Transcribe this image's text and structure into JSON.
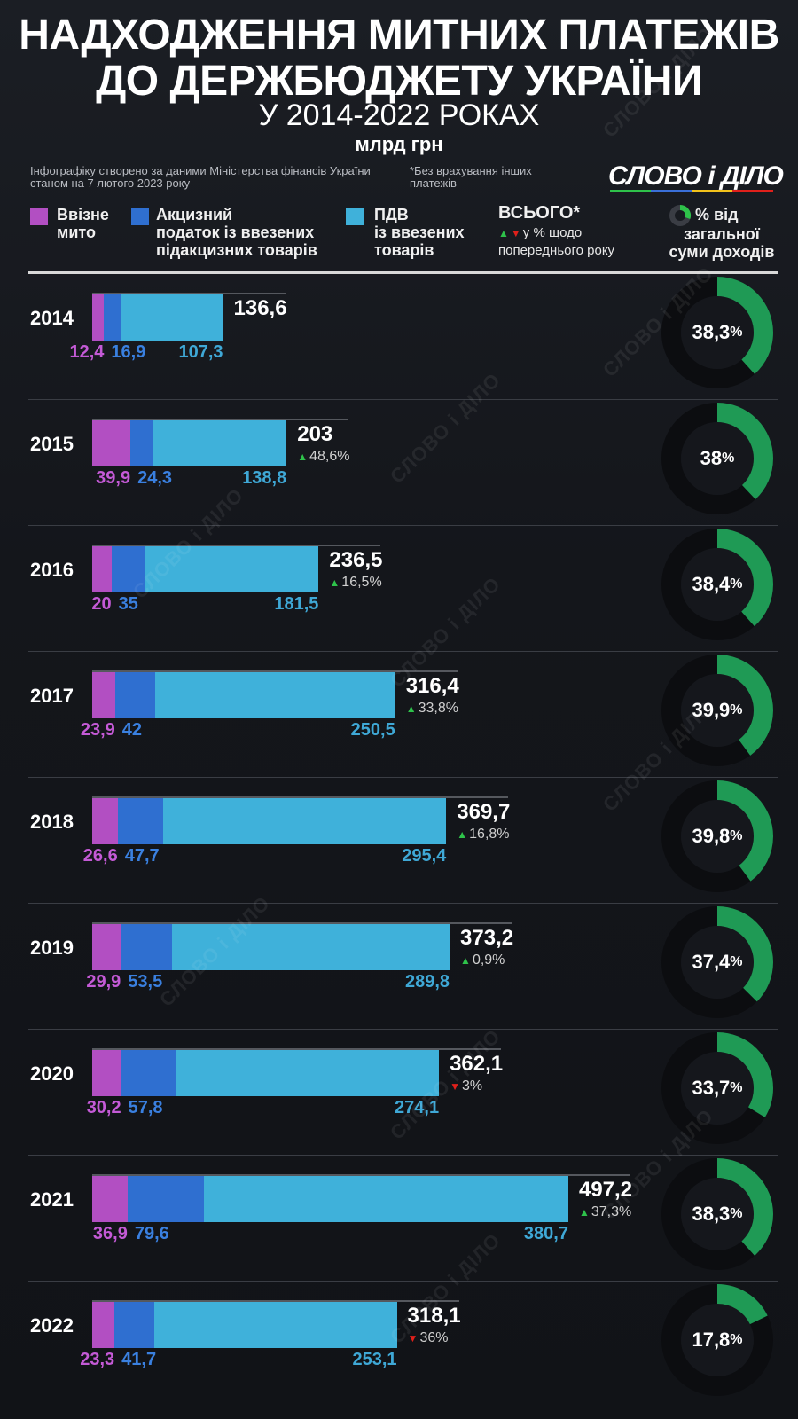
{
  "header": {
    "title_line1": "НАДХОДЖЕННЯ МИТНИХ ПЛАТЕЖІВ",
    "title_line2": "ДО ДЕРЖБЮДЖЕТУ УКРАЇНИ",
    "subtitle": "У 2014-2022 РОКАХ",
    "unit": "млрд грн",
    "source": "Інфографіку створено за даними Міністерства фінансів України станом на 7 лютого 2023 року",
    "note": "*Без врахування інших платежів",
    "logo": "СЛОВО і ДІЛО"
  },
  "legend": {
    "import_duty_line1": "Ввізне",
    "import_duty_line2": "мито",
    "excise_line1": "Акцизний",
    "excise_line2": "податок із ввезених",
    "excise_line3": "підакцизних товарів",
    "vat_line1": "ПДВ",
    "vat_line2": "із ввезених",
    "vat_line3": "товарів",
    "total_label": "ВСЬОГО*",
    "total_change_label": "у % щодо",
    "total_change_line2": "попереднього року",
    "share_line1": "% від",
    "share_line2": "загальної",
    "share_line3": "суми доходів"
  },
  "colors": {
    "import_duty": "#b24fc2",
    "excise": "#2f6fd0",
    "vat": "#3fb1da",
    "up": "#2ec24a",
    "down": "#e0201b",
    "donut": "#1f9a55"
  },
  "watermark": "СЛОВО і ДІЛО",
  "chart_data": {
    "type": "bar",
    "stacked": true,
    "orientation": "horizontal",
    "title": "НАДХОДЖЕННЯ МИТНИХ ПЛАТЕЖІВ ДО ДЕРЖБЮДЖЕТУ УКРАЇНИ У 2014-2022 РОКАХ",
    "unit": "млрд грн",
    "categories": [
      "2014",
      "2015",
      "2016",
      "2017",
      "2018",
      "2019",
      "2020",
      "2021",
      "2022"
    ],
    "series": [
      {
        "name": "Ввізне мито",
        "values": [
          12.4,
          39.9,
          20,
          23.9,
          26.6,
          29.9,
          30.2,
          36.9,
          23.3
        ],
        "labels": [
          "12,4",
          "39,9",
          "20",
          "23,9",
          "26,6",
          "29,9",
          "30,2",
          "36,9",
          "23,3"
        ]
      },
      {
        "name": "Акцизний податок із ввезених підакцизних товарів",
        "values": [
          16.9,
          24.3,
          35,
          42,
          47.7,
          53.5,
          57.8,
          79.6,
          41.7
        ],
        "labels": [
          "16,9",
          "24,3",
          "35",
          "42",
          "47,7",
          "53,5",
          "57,8",
          "79,6",
          "41,7"
        ]
      },
      {
        "name": "ПДВ із ввезених товарів",
        "values": [
          107.3,
          138.8,
          181.5,
          250.5,
          295.4,
          289.8,
          274.1,
          380.7,
          253.1
        ],
        "labels": [
          "107,3",
          "138,8",
          "181,5",
          "250,5",
          "295,4",
          "289,8",
          "274,1",
          "380,7",
          "253,1"
        ]
      }
    ],
    "totals": [
      136.6,
      203,
      236.5,
      316.4,
      369.7,
      373.2,
      362.1,
      497.2,
      318.1
    ],
    "total_labels": [
      "136,6",
      "203",
      "236,5",
      "316,4",
      "369,7",
      "373,2",
      "362,1",
      "497,2",
      "318,1"
    ],
    "change_labels": [
      "",
      "48,6%",
      "16,5%",
      "33,8%",
      "16,8%",
      "0,9%",
      "3%",
      "37,3%",
      "36%"
    ],
    "change_direction": [
      "",
      "up",
      "up",
      "up",
      "up",
      "up",
      "down",
      "up",
      "down"
    ],
    "share_of_revenue": [
      38.3,
      38,
      38.4,
      39.9,
      39.8,
      37.4,
      33.7,
      38.3,
      17.8
    ],
    "share_labels": [
      "38,3",
      "38",
      "38,4",
      "39,9",
      "39,8",
      "37,4",
      "33,7",
      "38,3",
      "17,8"
    ],
    "share_suffix": "%"
  }
}
